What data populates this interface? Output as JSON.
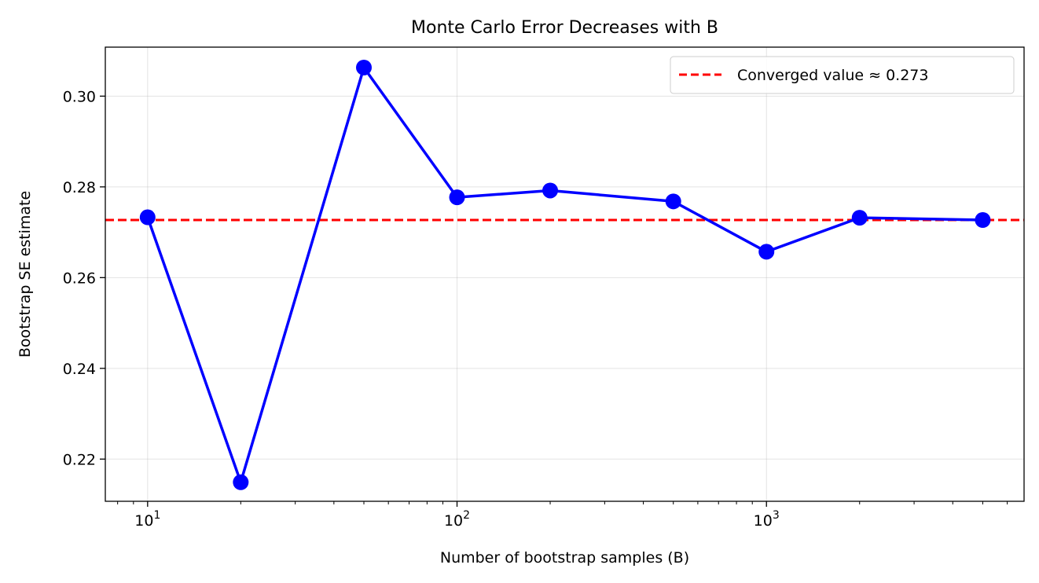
{
  "chart_data": {
    "type": "line",
    "title": "Monte Carlo Error Decreases with B",
    "xlabel": "Number of bootstrap samples (B)",
    "ylabel": "Bootstrap SE estimate",
    "xscale": "log",
    "xlim": [
      7.3,
      6800
    ],
    "ylim": [
      0.2107,
      0.3108
    ],
    "x_ticks": [
      {
        "value": 10,
        "base": "10",
        "exp": "1"
      },
      {
        "value": 100,
        "base": "10",
        "exp": "2"
      },
      {
        "value": 1000,
        "base": "10",
        "exp": "3"
      }
    ],
    "y_ticks": [
      {
        "value": 0.22,
        "label": "0.22"
      },
      {
        "value": 0.24,
        "label": "0.24"
      },
      {
        "value": 0.26,
        "label": "0.26"
      },
      {
        "value": 0.28,
        "label": "0.28"
      },
      {
        "value": 0.3,
        "label": "0.30"
      }
    ],
    "grid": true,
    "legend_position": "top-right",
    "series": [
      {
        "color": "#0000ff",
        "marker": "circle",
        "x": [
          10,
          20,
          50,
          100,
          200,
          500,
          1000,
          2000,
          5000
        ],
        "y": [
          0.2733,
          0.2149,
          0.3063,
          0.2777,
          0.2792,
          0.2768,
          0.2657,
          0.2732,
          0.2727
        ]
      }
    ],
    "reference_line": {
      "name": "Converged value ≈ 0.273",
      "y": 0.2727,
      "color": "#ff0000",
      "style": "dashed"
    }
  }
}
